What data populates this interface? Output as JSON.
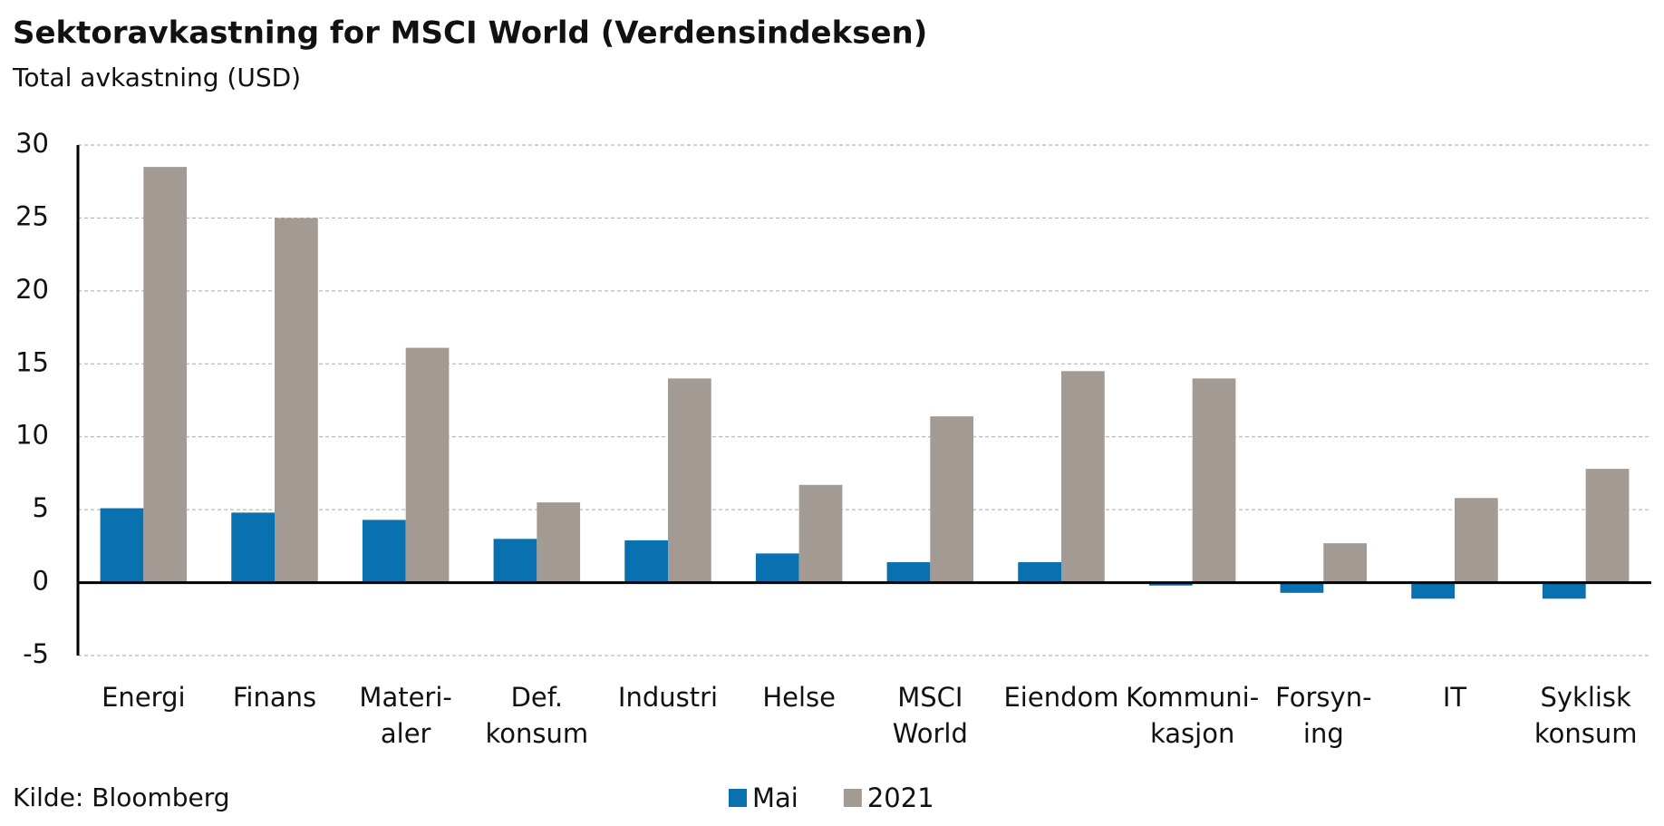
{
  "chart_data": {
    "type": "bar",
    "title": "Sektoravkastning for MSCI World (Verdensindeksen)",
    "subtitle": "Total avkastning (USD)",
    "source": "Kilde: Bloomberg",
    "categories": [
      "Energi",
      "Finans",
      "Materi-\naler",
      "Def.\nkonsum",
      "Industri",
      "Helse",
      "MSCI\nWorld",
      "Eiendom",
      "Kommuni-\nkasjon",
      "Forsyn-\ning",
      "IT",
      "Syklisk\nkonsum"
    ],
    "series": [
      {
        "name": "Mai",
        "color": "#0a71b0",
        "values": [
          5.1,
          4.8,
          4.3,
          3.0,
          2.9,
          2.0,
          1.4,
          1.4,
          -0.2,
          -0.7,
          -1.1,
          -1.1
        ]
      },
      {
        "name": "2021",
        "color": "#a39a93",
        "values": [
          28.5,
          25.0,
          16.1,
          5.5,
          14.0,
          6.7,
          11.4,
          14.5,
          14.0,
          2.7,
          5.8,
          7.8
        ]
      }
    ],
    "ylim": [
      -5,
      30
    ],
    "yticks": [
      -5,
      0,
      5,
      10,
      15,
      20,
      25,
      30
    ],
    "grid": true
  }
}
